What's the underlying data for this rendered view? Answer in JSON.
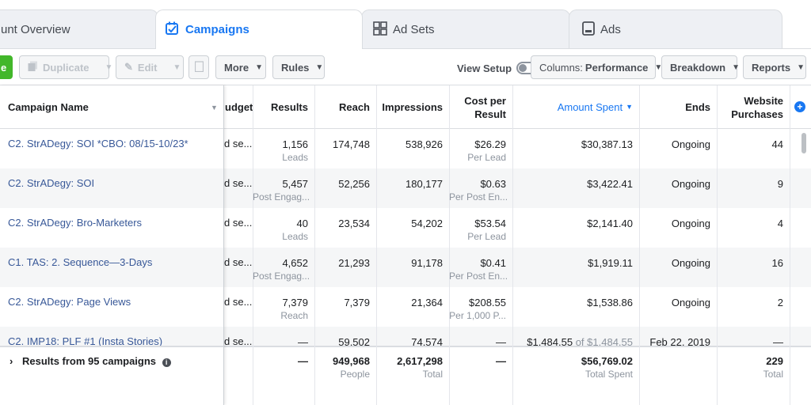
{
  "tabs": [
    {
      "label": "unt Overview"
    },
    {
      "label": "Campaigns"
    },
    {
      "label": "Ad Sets"
    },
    {
      "label": "Ads"
    }
  ],
  "toolbar": {
    "create_label": "e",
    "duplicate_label": "Duplicate",
    "edit_label": "Edit",
    "more_label": "More",
    "rules_label": "Rules",
    "view_setup_label": "View Setup",
    "columns_prefix": "Columns:",
    "columns_value": "Performance",
    "breakdown_label": "Breakdown",
    "reports_label": "Reports"
  },
  "columns": {
    "name": "Campaign Name",
    "budget": "udget",
    "results": "Results",
    "reach": "Reach",
    "impressions": "Impressions",
    "cost_per_result": "Cost per Result",
    "amount_spent": "Amount Spent",
    "ends": "Ends",
    "website_purchases": "Website Purchases"
  },
  "rows": [
    {
      "name": "C2. StrADegy: SOI *CBO: 08/15-10/23*",
      "budget": "d se...",
      "results": "1,156",
      "results_sub": "Leads",
      "reach": "174,748",
      "impressions": "538,926",
      "cost": "$26.29",
      "cost_sub": "Per Lead",
      "spent": "$30,387.13",
      "spent_of": "",
      "ends": "Ongoing",
      "purchases": "44"
    },
    {
      "name": "C2. StrADegy: SOI",
      "budget": "d se...",
      "results": "5,457",
      "results_sub": "Post Engag...",
      "reach": "52,256",
      "impressions": "180,177",
      "cost": "$0.63",
      "cost_sub": "Per Post En...",
      "spent": "$3,422.41",
      "spent_of": "",
      "ends": "Ongoing",
      "purchases": "9"
    },
    {
      "name": "C2. StrADegy: Bro-Marketers",
      "budget": "d se...",
      "results": "40",
      "results_sub": "Leads",
      "reach": "23,534",
      "impressions": "54,202",
      "cost": "$53.54",
      "cost_sub": "Per Lead",
      "spent": "$2,141.40",
      "spent_of": "",
      "ends": "Ongoing",
      "purchases": "4"
    },
    {
      "name": "C1. TAS: 2. Sequence—3-Days",
      "budget": "d se...",
      "results": "4,652",
      "results_sub": "Post Engag...",
      "reach": "21,293",
      "impressions": "91,178",
      "cost": "$0.41",
      "cost_sub": "Per Post En...",
      "spent": "$1,919.11",
      "spent_of": "",
      "ends": "Ongoing",
      "purchases": "16"
    },
    {
      "name": "C2. StrADegy: Page Views",
      "budget": "d se...",
      "results": "7,379",
      "results_sub": "Reach",
      "reach": "7,379",
      "impressions": "21,364",
      "cost": "$208.55",
      "cost_sub": "Per 1,000 P...",
      "spent": "$1,538.86",
      "spent_of": "",
      "ends": "Ongoing",
      "purchases": "2"
    },
    {
      "name": "C2. IMP18: PLF #1 (Insta Stories)",
      "budget": "d se...",
      "results": "—",
      "results_sub": "",
      "reach": "59,502",
      "impressions": "74,574",
      "cost": "—",
      "cost_sub": "",
      "spent": "$1,484.55",
      "spent_of": "of $1,484.55",
      "ends": "Feb 22, 2019",
      "purchases": "—"
    }
  ],
  "totals": {
    "label": "Results from 95 campaigns",
    "results": "—",
    "reach": "949,968",
    "reach_sub": "People",
    "impressions": "2,617,298",
    "impressions_sub": "Total",
    "cost": "—",
    "spent": "$56,769.02",
    "spent_sub": "Total Spent",
    "purchases": "229",
    "purchases_sub": "Total"
  },
  "colors": {
    "accent": "#1877f2",
    "link": "#385898",
    "create": "#42b72a"
  }
}
